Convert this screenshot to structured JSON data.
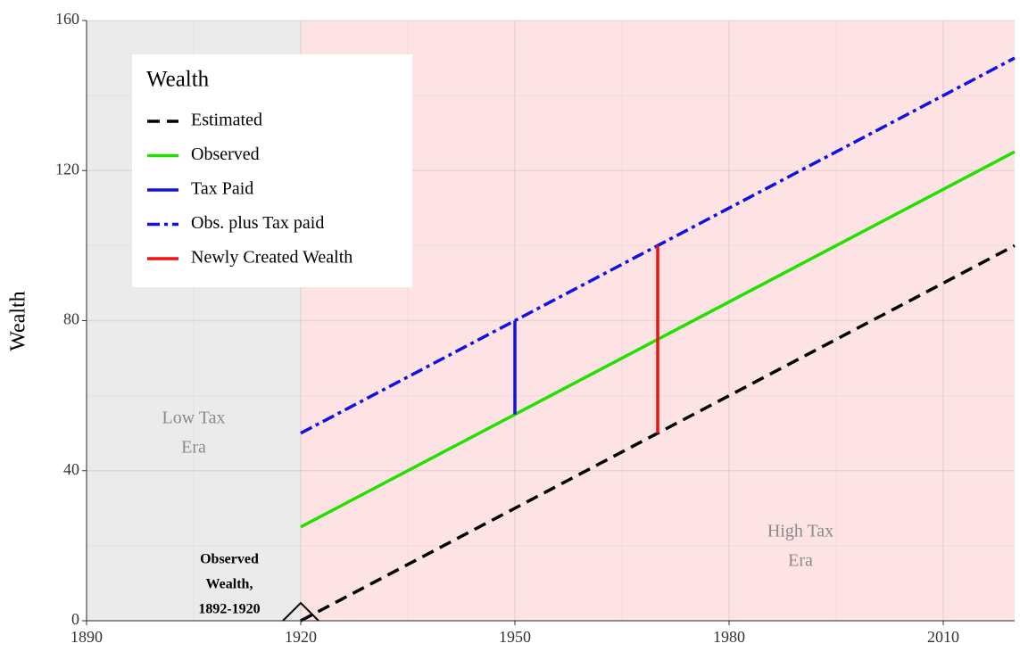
{
  "chart_data": {
    "type": "line",
    "ylabel": "Wealth",
    "legend_title": "Wealth",
    "legend": "top-left",
    "xlim": [
      1890,
      2020
    ],
    "ylim": [
      0,
      160
    ],
    "xticks": [
      1890,
      1920,
      1950,
      1980,
      2010
    ],
    "yticks": [
      0,
      40,
      80,
      120,
      160
    ],
    "xminor": [
      1905,
      1935,
      1965,
      1995
    ],
    "yminor": [
      20,
      60,
      100,
      140
    ],
    "grid": true,
    "regions": [
      {
        "from": 1890,
        "to": 1920,
        "color": "#ebebeb"
      },
      {
        "from": 1920,
        "to": 2020,
        "color": "#fde3e4"
      }
    ],
    "series": [
      {
        "name": "Estimated",
        "color": "#000000",
        "linestyle": "dashed",
        "x": [
          1920,
          2020
        ],
        "values": [
          0,
          100
        ]
      },
      {
        "name": "Observed",
        "color": "#22e000",
        "linestyle": "solid",
        "x": [
          1920,
          2020
        ],
        "values": [
          25,
          125
        ]
      },
      {
        "name": "Tax Paid",
        "color": "#1010e8",
        "linestyle": "solid",
        "x": [
          1950,
          1950
        ],
        "values": [
          55,
          80
        ]
      },
      {
        "name": "Obs. plus Tax paid",
        "color": "#1010e8",
        "linestyle": "dashdot",
        "x": [
          1920,
          2020
        ],
        "values": [
          50,
          150
        ]
      },
      {
        "name": "Newly Created Wealth",
        "color": "#ee1111",
        "linestyle": "solid",
        "x": [
          1970,
          1970
        ],
        "values": [
          50,
          100
        ]
      }
    ],
    "annotations": [
      {
        "lines": [
          "Low Tax",
          "Era"
        ]
      },
      {
        "lines": [
          "High Tax",
          "Era"
        ]
      },
      {
        "lines": [
          "Observed",
          "Wealth,",
          "1892-1920"
        ]
      }
    ]
  }
}
